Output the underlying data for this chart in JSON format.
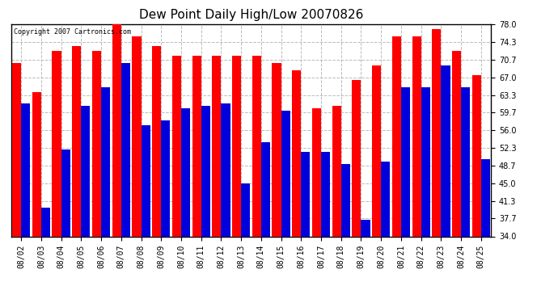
{
  "title": "Dew Point Daily High/Low 20070826",
  "copyright": "Copyright 2007 Cartronics.com",
  "dates": [
    "08/02",
    "08/03",
    "08/04",
    "08/05",
    "08/06",
    "08/07",
    "08/08",
    "08/09",
    "08/10",
    "08/11",
    "08/12",
    "08/13",
    "08/14",
    "08/15",
    "08/16",
    "08/17",
    "08/18",
    "08/19",
    "08/20",
    "08/21",
    "08/22",
    "08/23",
    "08/24",
    "08/25"
  ],
  "highs": [
    70.0,
    64.0,
    72.5,
    73.5,
    72.5,
    78.0,
    75.5,
    73.5,
    71.5,
    71.5,
    71.5,
    71.5,
    71.5,
    70.0,
    68.5,
    60.5,
    61.0,
    66.5,
    69.5,
    75.5,
    75.5,
    77.0,
    72.5,
    67.5
  ],
  "lows": [
    61.5,
    40.0,
    52.0,
    61.0,
    65.0,
    70.0,
    57.0,
    58.0,
    60.5,
    61.0,
    61.5,
    45.0,
    53.5,
    60.0,
    51.5,
    51.5,
    49.0,
    37.5,
    49.5,
    65.0,
    65.0,
    69.5,
    65.0,
    50.0
  ],
  "high_color": "#ff0000",
  "low_color": "#0000dd",
  "bg_color": "#ffffff",
  "plot_bg_color": "#ffffff",
  "grid_color": "#bbbbbb",
  "ymin": 34.0,
  "ymax": 78.0,
  "yticks": [
    34.0,
    37.7,
    41.3,
    45.0,
    48.7,
    52.3,
    56.0,
    59.7,
    63.3,
    67.0,
    70.7,
    74.3,
    78.0
  ]
}
